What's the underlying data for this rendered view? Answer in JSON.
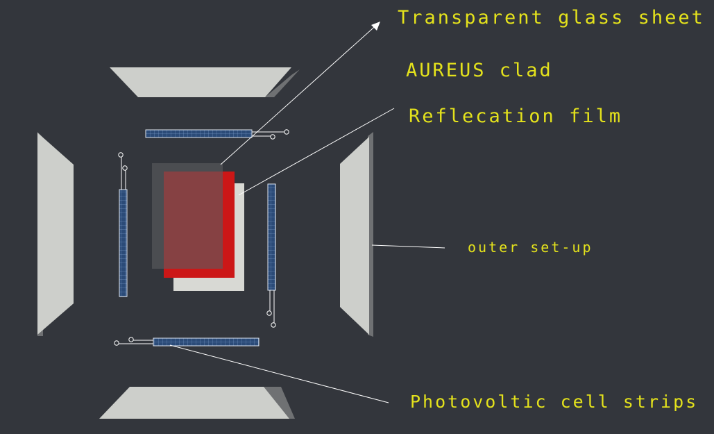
{
  "labels": {
    "glass": "Transparent glass sheet",
    "aureus": "AUREUS clad",
    "reflection": "Reflecation film",
    "outer": "outer set-up",
    "pv": "Photovoltic cell strips"
  },
  "colors": {
    "background": "#33363c",
    "label_text": "#e4e21c",
    "leader_line": "#ffffff",
    "panel_face": "#cdcfcb",
    "panel_edge": "#6f7173",
    "glass_sheet": "#5b5c5f",
    "aureus_clad": "#cc1717",
    "reflection_film": "#d8d9d4",
    "pv_strip": "#2b4b78",
    "pv_grid": "#8fb0dc"
  },
  "icons": {
    "arrowhead": "arrow-icon",
    "terminal": "circle-terminal-icon"
  }
}
